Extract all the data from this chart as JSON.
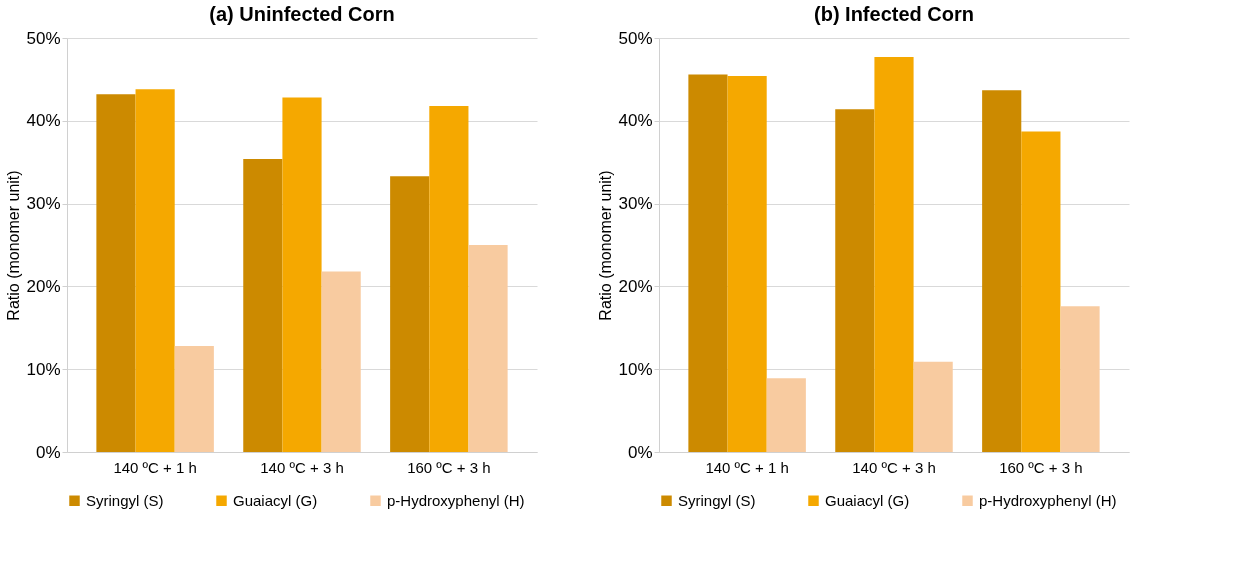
{
  "chart_data": [
    {
      "type": "bar",
      "title": "(a) Uninfected Corn",
      "ylabel": "Ratio (monomer unit)",
      "categories": [
        "140 ºC + 1 h",
        "140 ºC + 3 h",
        "160 ºC + 3 h"
      ],
      "series": [
        {
          "name": "Syringyl (S)",
          "color": "#cc8a00",
          "values": [
            43.2,
            35.4,
            33.3
          ]
        },
        {
          "name": "Guaiacyl (G)",
          "color": "#f5a800",
          "values": [
            43.8,
            42.8,
            41.8
          ]
        },
        {
          "name": "p-Hydroxyphenyl (H)",
          "color": "#f8cba0",
          "values": [
            12.8,
            21.8,
            25.0
          ]
        }
      ],
      "ylim": [
        0,
        50
      ],
      "yticks": [
        {
          "value": 0,
          "label": "0%"
        },
        {
          "value": 10,
          "label": "10%"
        },
        {
          "value": 20,
          "label": "20%"
        },
        {
          "value": 30,
          "label": "30%"
        },
        {
          "value": 40,
          "label": "40%"
        },
        {
          "value": 50,
          "label": "50%"
        }
      ],
      "grid": "y",
      "legend": "bottom"
    },
    {
      "type": "bar",
      "title": "(b) Infected Corn",
      "ylabel": "Ratio (monomer unit)",
      "categories": [
        "140 ºC + 1 h",
        "140 ºC + 3 h",
        "160 ºC + 3 h"
      ],
      "series": [
        {
          "name": "Syringyl (S)",
          "color": "#cc8a00",
          "values": [
            45.6,
            41.4,
            43.7
          ]
        },
        {
          "name": "Guaiacyl (G)",
          "color": "#f5a800",
          "values": [
            45.4,
            47.7,
            38.7
          ]
        },
        {
          "name": "p-Hydroxyphenyl (H)",
          "color": "#f8cba0",
          "values": [
            8.9,
            10.9,
            17.6
          ]
        }
      ],
      "ylim": [
        0,
        50
      ],
      "yticks": [
        {
          "value": 0,
          "label": "0%"
        },
        {
          "value": 10,
          "label": "10%"
        },
        {
          "value": 20,
          "label": "20%"
        },
        {
          "value": 30,
          "label": "30%"
        },
        {
          "value": 40,
          "label": "40%"
        },
        {
          "value": 50,
          "label": "50%"
        }
      ],
      "grid": "y",
      "legend": "bottom"
    }
  ]
}
